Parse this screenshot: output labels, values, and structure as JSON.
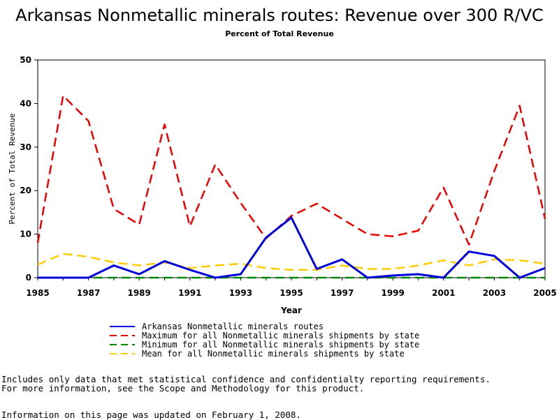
{
  "title": "Arkansas Nonmetallic minerals routes: Revenue over 300 R/VC",
  "subtitle": "Percent of Total Revenue",
  "footnote_1": "Includes only data that met statistical confidence and confidentialty reporting requirements.",
  "footnote_2": "For more information, see the Scope and Methodology for this product.",
  "footnote_3": "Information on this page was updated on February 1, 2008.",
  "chart_data": {
    "type": "line",
    "xlabel": "Year",
    "ylabel": "Percent of Total Revenue",
    "xlim": [
      1985,
      2005
    ],
    "ylim": [
      0,
      50
    ],
    "x_ticks": [
      "1985",
      "1987",
      "1989",
      "1991",
      "1993",
      "1995",
      "1997",
      "1999",
      "2001",
      "2003",
      "2005"
    ],
    "y_ticks": [
      "0",
      "10",
      "20",
      "30",
      "40",
      "50"
    ],
    "x": [
      1985,
      1986,
      1987,
      1988,
      1989,
      1990,
      1991,
      1992,
      1993,
      1994,
      1995,
      1996,
      1997,
      1998,
      1999,
      2000,
      2001,
      2002,
      2003,
      2004,
      2005
    ],
    "series": [
      {
        "name": "Arkansas Nonmetallic minerals routes",
        "color": "#0000dd",
        "style": "solid",
        "values": [
          0,
          0,
          0,
          2.8,
          0.8,
          3.8,
          1.8,
          0,
          0.8,
          9.2,
          13.8,
          2,
          4.2,
          0,
          0.5,
          0.8,
          0,
          6,
          5,
          0,
          2.2
        ]
      },
      {
        "name": "Maximum for all Nonmetallic minerals shipments by state",
        "color": "#ee0000",
        "style": "dashed",
        "values": [
          8,
          41.8,
          36,
          15.8,
          12.2,
          35.2,
          11.8,
          26,
          17.2,
          9,
          14.2,
          17,
          13.5,
          10,
          9.5,
          10.8,
          20.7,
          7.6,
          24.5,
          39.5,
          13.5
        ]
      },
      {
        "name": "Minimum for all Nonmetallic minerals shipments by state",
        "color": "#008800",
        "style": "dashed",
        "values": [
          0,
          0,
          0,
          0,
          0,
          0,
          0,
          0,
          0,
          0,
          0,
          0,
          0,
          0,
          0,
          0,
          0,
          0,
          0,
          0,
          0
        ]
      },
      {
        "name": "Mean for all Nonmetallic minerals shipments by state",
        "color": "#ffcc00",
        "style": "dashed",
        "values": [
          3,
          5.5,
          4.8,
          3.5,
          2.8,
          3.5,
          2.2,
          2.8,
          3.2,
          2.2,
          1.8,
          1.8,
          2.8,
          2,
          2,
          2.8,
          4,
          2.8,
          4.2,
          4,
          3.2
        ]
      }
    ]
  }
}
